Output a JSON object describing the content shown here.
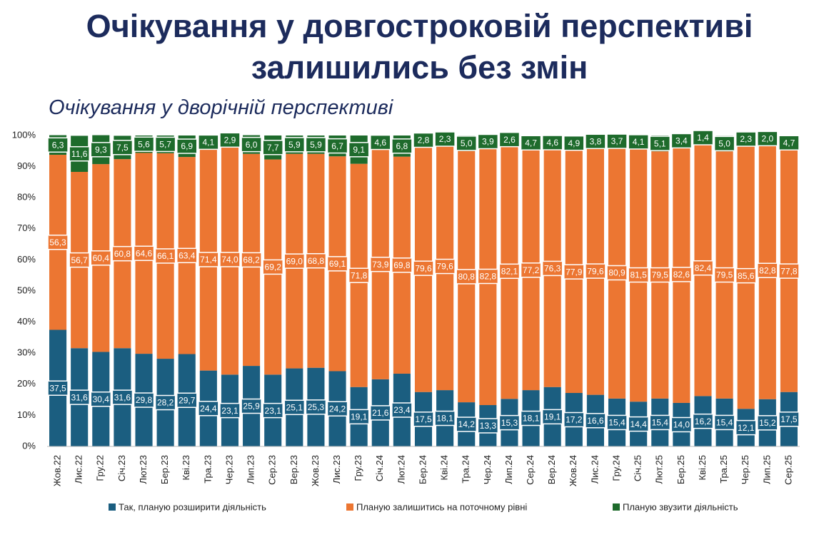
{
  "chart_data": {
    "type": "stacked_bar",
    "title": "Очікування у довгостроковій перспективі залишились без змін",
    "subtitle": "Очікування у дворічній перспективі",
    "categories": [
      "Жов.22",
      "Лис.22",
      "Гру.22",
      "Січ.23",
      "Лют.23",
      "Бер.23",
      "Кві.23",
      "Тра.23",
      "Чер.23",
      "Лип.23",
      "Сер.23",
      "Вер.23",
      "Жов.23",
      "Лис.23",
      "Гру.23",
      "Січ.24",
      "Лют.24",
      "Бер.24",
      "Кві.24",
      "Тра.24",
      "Чер.24",
      "Лип.24",
      "Сер.24",
      "Вер.24",
      "Жов.24",
      "Лис.24",
      "Гру.24",
      "Січ.25",
      "Лют.25",
      "Бер.25",
      "Кві.25",
      "Тра.25",
      "Чер.25",
      "Лип.25",
      "Сер.25"
    ],
    "series": [
      {
        "name": "Так, планую розширити діяльність",
        "color": "#1b5e80",
        "values": [
          37.5,
          31.6,
          30.4,
          31.6,
          29.8,
          28.2,
          29.7,
          24.4,
          23.1,
          25.9,
          23.1,
          25.1,
          25.3,
          24.2,
          19.1,
          21.6,
          23.4,
          17.5,
          18.1,
          14.2,
          13.3,
          15.3,
          18.1,
          19.1,
          17.2,
          16.6,
          15.4,
          14.4,
          15.4,
          14.0,
          16.2,
          15.4,
          12.1,
          15.2,
          17.5
        ],
        "value_labels": [
          "37,5",
          "31,6",
          "30,4",
          "31,6",
          "29,8",
          "28,2",
          "29,7",
          "24,4",
          "23,1",
          "25,9",
          "23,1",
          "25,1",
          "25,3",
          "24,2",
          "19,1",
          "21,6",
          "23,4",
          "17,5",
          "18,1",
          "14,2",
          "13,3",
          "15,3",
          "18,1",
          "19,1",
          "17,2",
          "16,6",
          "15,4",
          "14,4",
          "15,4",
          "14,0",
          "16,2",
          "15,4",
          "12,1",
          "15,2",
          "17,5"
        ]
      },
      {
        "name": "Планую залишитись на поточному рівні",
        "color": "#ec7632",
        "values": [
          56.3,
          56.7,
          60.4,
          60.8,
          64.6,
          66.1,
          63.4,
          71.4,
          74.0,
          68.2,
          69.2,
          69.0,
          68.8,
          69.1,
          71.8,
          73.9,
          69.8,
          79.6,
          79.6,
          80.8,
          82.8,
          82.1,
          77.2,
          76.3,
          77.9,
          79.6,
          80.9,
          81.5,
          79.5,
          82.6,
          82.4,
          79.5,
          85.6,
          82.8,
          77.8
        ],
        "value_labels": [
          "56,3",
          "56,7",
          "60,4",
          "60,8",
          "64,6",
          "66,1",
          "63,4",
          "71,4",
          "74,0",
          "68,2",
          "69,2",
          "69,0",
          "68,8",
          "69,1",
          "71,8",
          "73,9",
          "69,8",
          "79,6",
          "79,6",
          "80,8",
          "82,8",
          "82,1",
          "77,2",
          "76,3",
          "77,9",
          "79,6",
          "80,9",
          "81,5",
          "79,5",
          "82,6",
          "82,4",
          "79,5",
          "85,6",
          "82,8",
          "77,8"
        ]
      },
      {
        "name": "Планую звузити діяльність",
        "color": "#1e6b2c",
        "values": [
          6.3,
          11.6,
          9.3,
          7.5,
          5.6,
          5.7,
          6.9,
          4.1,
          2.9,
          6.0,
          7.7,
          5.9,
          5.9,
          6.7,
          9.1,
          4.6,
          6.8,
          2.8,
          2.3,
          5.0,
          3.9,
          2.6,
          4.7,
          4.6,
          4.9,
          3.8,
          3.7,
          4.1,
          5.1,
          3.4,
          1.4,
          5.0,
          2.3,
          2.0,
          4.7
        ],
        "value_labels": [
          "6,3",
          "11,6",
          "9,3",
          "7,5",
          "5,6",
          "5,7",
          "6,9",
          "4,1",
          "2,9",
          "6,0",
          "7,7",
          "5,9",
          "5,9",
          "6,7",
          "9,1",
          "4,6",
          "6,8",
          "2,8",
          "2,3",
          "5,0",
          "3,9",
          "2,6",
          "4,7",
          "4,6",
          "4,9",
          "3,8",
          "3,7",
          "4,1",
          "5,1",
          "3,4",
          "1,4",
          "5,0",
          "2,3",
          "2,0",
          "4,7"
        ]
      }
    ],
    "ylim": [
      0,
      100
    ],
    "yticks": [
      {
        "value": 0,
        "label": "0%"
      },
      {
        "value": 10,
        "label": "10%"
      },
      {
        "value": 20,
        "label": "20%"
      },
      {
        "value": 30,
        "label": "30%"
      },
      {
        "value": 40,
        "label": "40%"
      },
      {
        "value": 50,
        "label": "50%"
      },
      {
        "value": 60,
        "label": "60%"
      },
      {
        "value": 70,
        "label": "70%"
      },
      {
        "value": 80,
        "label": "80%"
      },
      {
        "value": 90,
        "label": "90%"
      },
      {
        "value": 100,
        "label": "100%"
      }
    ],
    "grid": false,
    "legend": "bottom"
  }
}
